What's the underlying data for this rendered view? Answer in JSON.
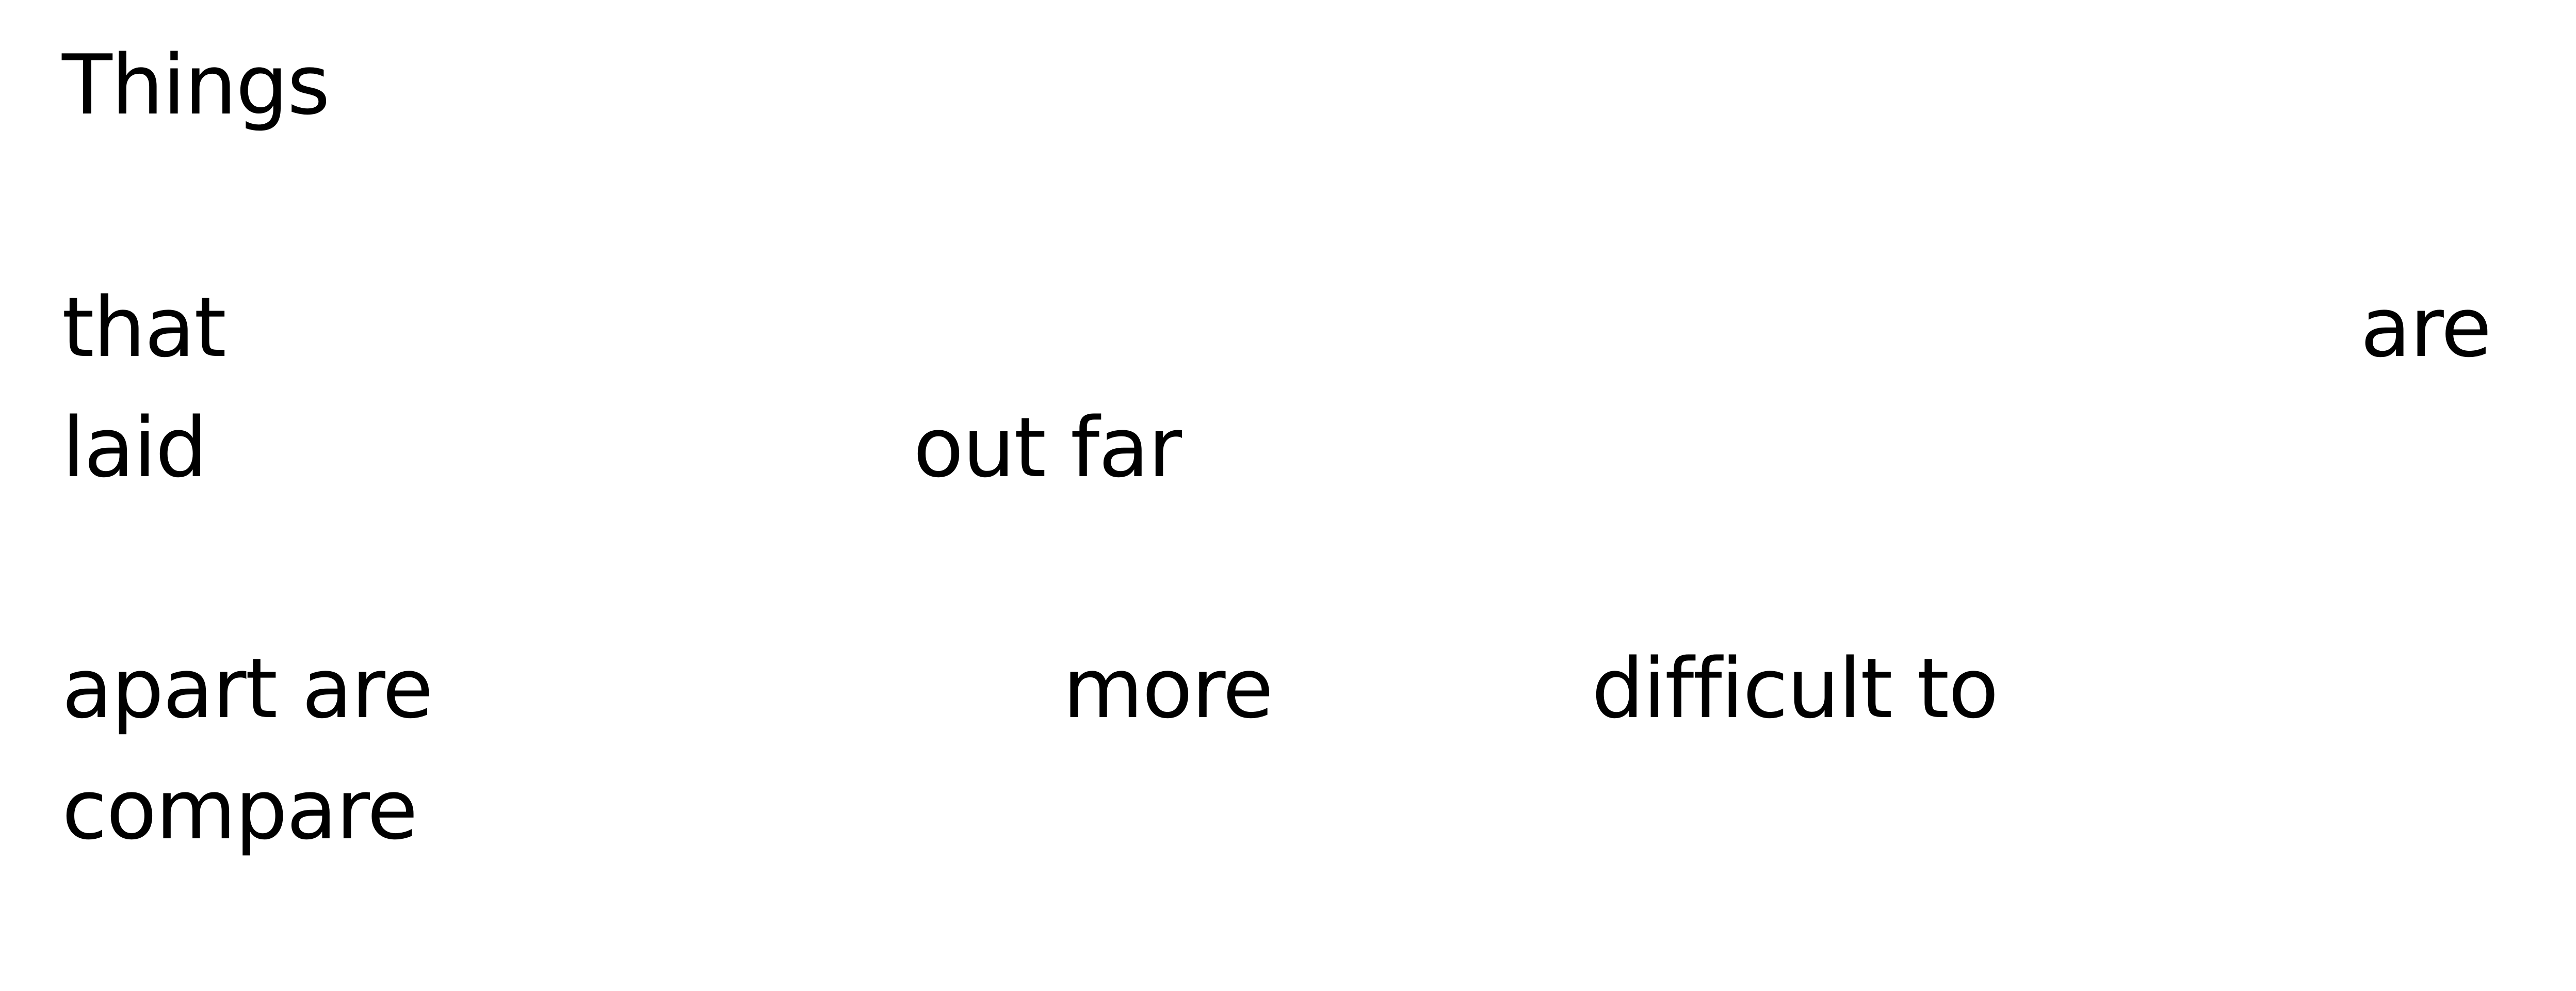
{
  "text": {
    "line1": [
      "Things"
    ],
    "line2": [
      "that",
      "are"
    ],
    "line3": [
      "laid",
      "out far"
    ],
    "line4": [
      "apart are",
      "more",
      "difficult to"
    ],
    "line5": [
      "compare"
    ]
  },
  "colors": {
    "background": "#ffffff",
    "text": "#000000"
  }
}
